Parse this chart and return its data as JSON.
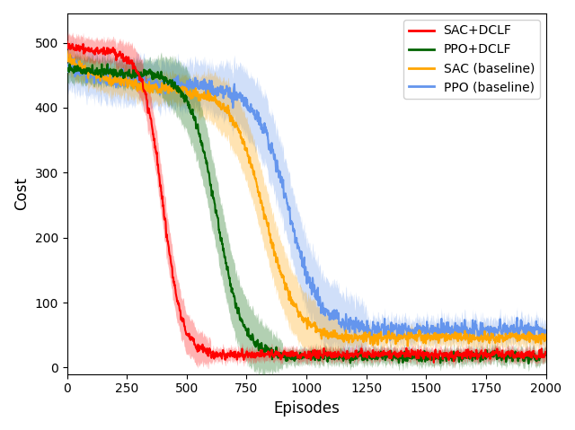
{
  "xlabel": "Episodes",
  "ylabel": "Cost",
  "xlim": [
    0,
    2000
  ],
  "ylim": [
    -10,
    545
  ],
  "series_order": [
    "PPO (baseline)",
    "SAC (baseline)",
    "PPO+DCLF",
    "SAC+DCLF"
  ],
  "series": {
    "SAC+DCLF": {
      "color": "#FF0000",
      "start": 497,
      "plateau_end": 50,
      "plateau_val": 485,
      "drop_start": 200,
      "drop_end": 600,
      "final": 20,
      "std_plateau": 18,
      "std_drop": 35,
      "std_final": 10,
      "zorder": 4
    },
    "PPO+DCLF": {
      "color": "#006400",
      "start": 462,
      "plateau_end": 150,
      "plateau_val": 452,
      "drop_start": 350,
      "drop_end": 900,
      "final": 17,
      "std_plateau": 20,
      "std_drop": 55,
      "std_final": 12,
      "zorder": 3
    },
    "SAC (baseline)": {
      "color": "#FFA500",
      "start": 478,
      "plateau_end": 200,
      "plateau_val": 425,
      "drop_start": 500,
      "drop_end": 1150,
      "final": 47,
      "std_plateau": 22,
      "std_drop": 50,
      "std_final": 14,
      "zorder": 2
    },
    "PPO (baseline)": {
      "color": "#6495ED",
      "start": 465,
      "plateau_end": 200,
      "plateau_val": 430,
      "drop_start": 600,
      "drop_end": 1250,
      "final": 58,
      "std_plateau": 35,
      "std_drop": 55,
      "std_final": 17,
      "zorder": 1
    }
  },
  "xticks": [
    0,
    250,
    500,
    750,
    1000,
    1250,
    1500,
    1750,
    2000
  ],
  "yticks": [
    0,
    100,
    200,
    300,
    400,
    500
  ],
  "legend_loc": "upper right",
  "figsize": [
    6.4,
    4.79
  ],
  "dpi": 100
}
